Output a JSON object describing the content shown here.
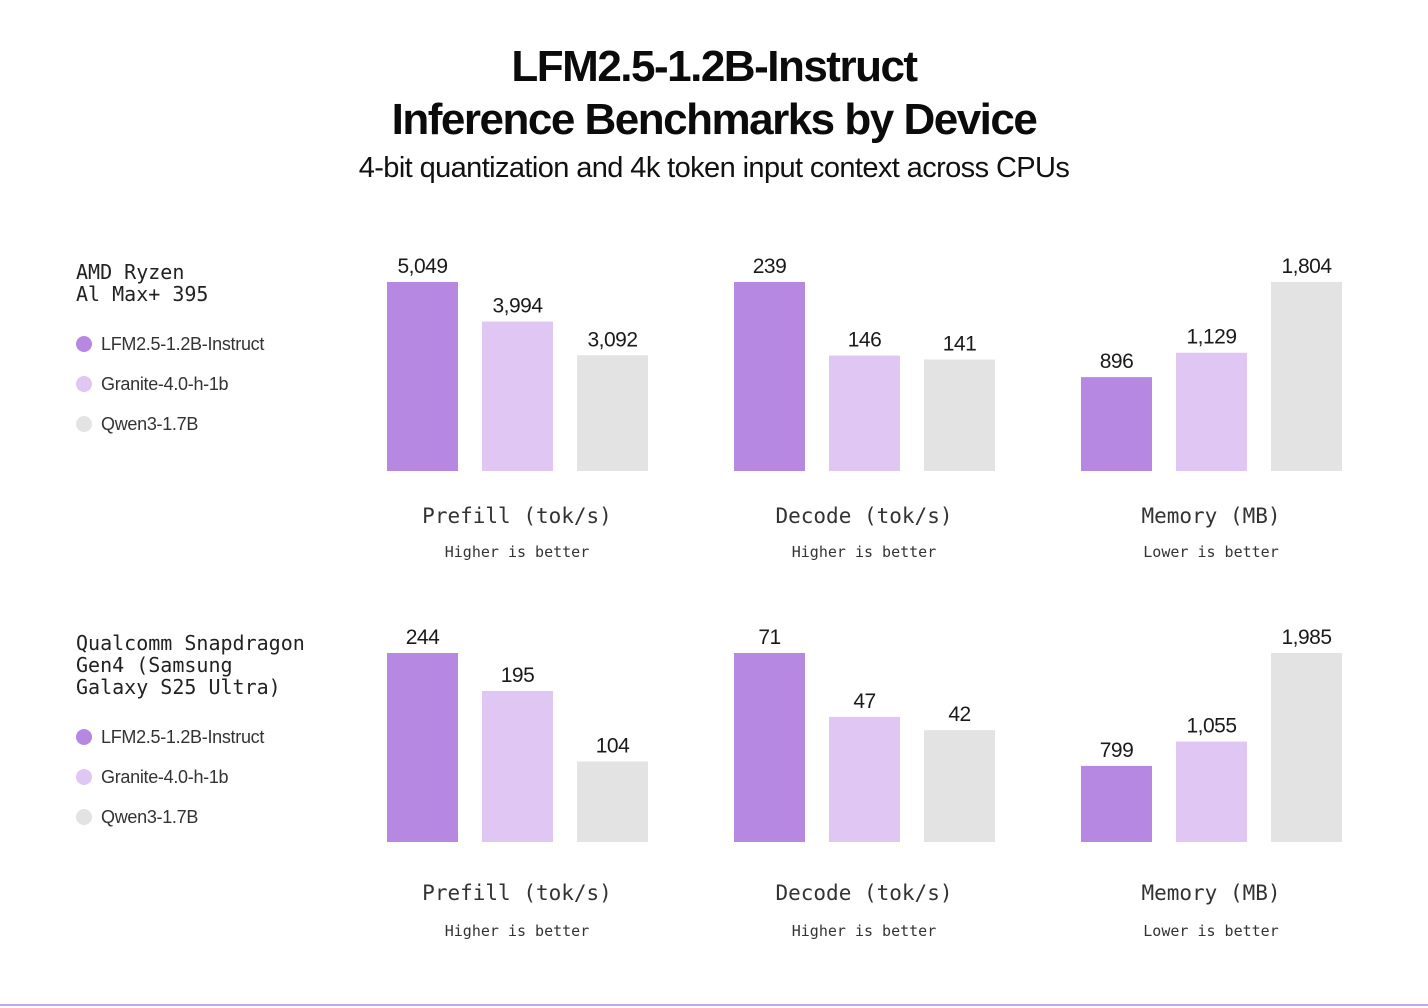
{
  "title_line1": "LFM2.5-1.2B-Instruct",
  "title_line2": "Inference Benchmarks by Device",
  "subtitle": "4-bit quantization and 4k token input context across CPUs",
  "colors": {
    "lfm": "#b688e2",
    "granite": "#dfc6f3",
    "qwen": "#e3e3e3"
  },
  "legend": [
    {
      "label": "LFM2.5-1.2B-Instruct",
      "color": "#b688e2"
    },
    {
      "label": "Granite-4.0-h-1b",
      "color": "#dfc6f3"
    },
    {
      "label": "Qwen3-1.7B",
      "color": "#e3e3e3"
    }
  ],
  "devices": [
    {
      "name": "AMD Ryzen\nAl Max+ 395"
    },
    {
      "name": "Qualcomm Snapdragon\nGen4 (Samsung\nGalaxy S25 Ultra)"
    }
  ],
  "metrics": [
    {
      "label": "Prefill (tok/s)",
      "note": "Higher is better"
    },
    {
      "label": "Decode (tok/s)",
      "note": "Higher is better"
    },
    {
      "label": "Memory (MB)",
      "note": "Lower is better"
    }
  ],
  "chart_data": [
    {
      "type": "bar",
      "device": "AMD Ryzen Al Max+ 395",
      "metric": "Prefill (tok/s)",
      "categories": [
        "LFM2.5-1.2B-Instruct",
        "Granite-4.0-h-1b",
        "Qwen3-1.7B"
      ],
      "values": [
        5049,
        3994,
        3092
      ],
      "labels": [
        "5,049",
        "3,994",
        "3,092"
      ]
    },
    {
      "type": "bar",
      "device": "AMD Ryzen Al Max+ 395",
      "metric": "Decode (tok/s)",
      "categories": [
        "LFM2.5-1.2B-Instruct",
        "Granite-4.0-h-1b",
        "Qwen3-1.7B"
      ],
      "values": [
        239,
        146,
        141
      ],
      "labels": [
        "239",
        "146",
        "141"
      ]
    },
    {
      "type": "bar",
      "device": "AMD Ryzen Al Max+ 395",
      "metric": "Memory (MB)",
      "categories": [
        "LFM2.5-1.2B-Instruct",
        "Granite-4.0-h-1b",
        "Qwen3-1.7B"
      ],
      "values": [
        896,
        1129,
        1804
      ],
      "labels": [
        "896",
        "1,129",
        "1,804"
      ]
    },
    {
      "type": "bar",
      "device": "Qualcomm Snapdragon Gen4 (Samsung Galaxy S25 Ultra)",
      "metric": "Prefill (tok/s)",
      "categories": [
        "LFM2.5-1.2B-Instruct",
        "Granite-4.0-h-1b",
        "Qwen3-1.7B"
      ],
      "values": [
        244,
        195,
        104
      ],
      "labels": [
        "244",
        "195",
        "104"
      ]
    },
    {
      "type": "bar",
      "device": "Qualcomm Snapdragon Gen4 (Samsung Galaxy S25 Ultra)",
      "metric": "Decode (tok/s)",
      "categories": [
        "LFM2.5-1.2B-Instruct",
        "Granite-4.0-h-1b",
        "Qwen3-1.7B"
      ],
      "values": [
        71,
        47,
        42
      ],
      "labels": [
        "71",
        "47",
        "42"
      ]
    },
    {
      "type": "bar",
      "device": "Qualcomm Snapdragon Gen4 (Samsung Galaxy S25 Ultra)",
      "metric": "Memory (MB)",
      "categories": [
        "LFM2.5-1.2B-Instruct",
        "Granite-4.0-h-1b",
        "Qwen3-1.7B"
      ],
      "values": [
        799,
        1055,
        1985
      ],
      "labels": [
        "799",
        "1,055",
        "1,985"
      ]
    }
  ]
}
